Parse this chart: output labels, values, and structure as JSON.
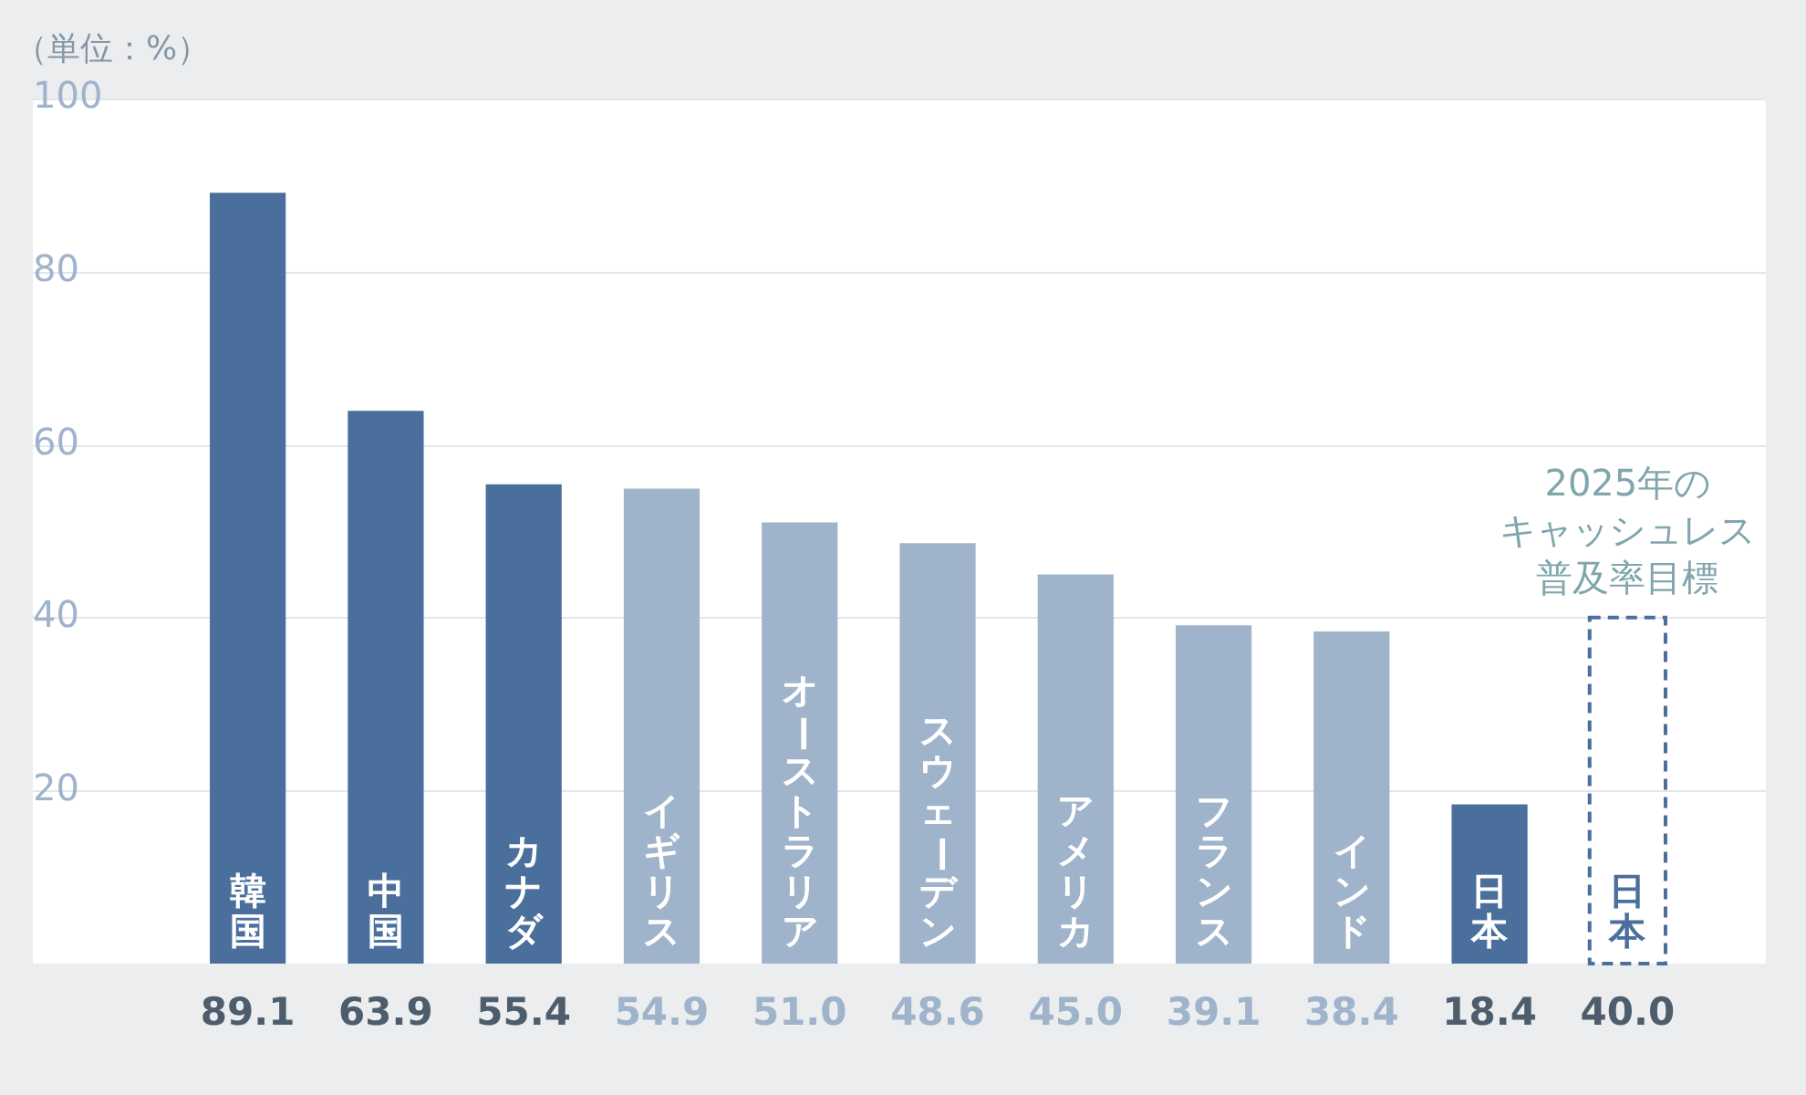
{
  "chart_data": {
    "type": "bar",
    "ylabel": "（単位：%）",
    "categories": [
      "韓国",
      "中国",
      "カナダ",
      "イギリス",
      "オーストラリア",
      "スウェーデン",
      "アメリカ",
      "フランス",
      "インド",
      "日本",
      "日本"
    ],
    "series": [
      {
        "colors": [
          "#4a6f9c",
          "#4a6f9c",
          "#4a6f9c",
          "#9fb3cb",
          "#9fb3cb",
          "#9fb3cb",
          "#9fb3cb",
          "#9fb3cb",
          "#9fb3cb",
          "#4a6f9c",
          null
        ],
        "values": [
          89.1,
          63.9,
          55.4,
          54.9,
          51.0,
          48.6,
          45.0,
          39.1,
          38.4,
          18.4,
          null
        ],
        "value_labels": [
          "89.1",
          "63.9",
          "55.4",
          "54.9",
          "51.0",
          "48.6",
          "45.0",
          "39.1",
          "38.4",
          "18.4",
          null
        ]
      },
      {
        "color": "#4a6f9c",
        "line_style": "dashed",
        "values": [
          null,
          null,
          null,
          null,
          null,
          null,
          null,
          null,
          null,
          null,
          40.0
        ],
        "value_labels": [
          null,
          null,
          null,
          null,
          null,
          null,
          null,
          null,
          null,
          null,
          "40.0"
        ]
      }
    ],
    "annotations": [
      "2025年の",
      "キャッシュレス",
      "普及率目標"
    ],
    "ylim": [
      0,
      100
    ],
    "yticks": [
      20,
      40,
      60,
      80,
      100
    ],
    "grid": "y",
    "legend": false
  }
}
